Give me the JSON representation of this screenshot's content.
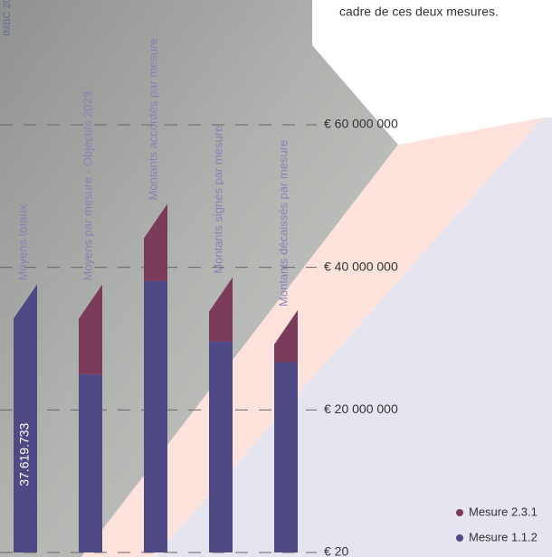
{
  "header": {
    "intro": "cadre de ces deux mesures.",
    "side": "IMBC 20"
  },
  "chart_data": {
    "type": "bar",
    "stacked": true,
    "categories": [
      "Moyens totaux",
      "Moyens par mesure - Objectifs 2023",
      "Montants accordés par mesure",
      "Montants signés par mesure",
      "Montants décaissés par mesure"
    ],
    "series": [
      {
        "name": "Mesure 2.3.1",
        "color": "#7d3b5c",
        "values": [
          null,
          12600000,
          10800000,
          9000000,
          7300000
        ]
      },
      {
        "name": "Mesure 1.1.2",
        "color": "#4f4a86",
        "values": [
          37619733,
          25000000,
          38100000,
          29600000,
          26700000
        ],
        "value_labels": [
          "37.619.733",
          null,
          null,
          null,
          null
        ]
      }
    ],
    "ylim": [
      0,
      60000000
    ],
    "yticks": [
      {
        "value": 20,
        "label": "€ 20"
      },
      {
        "value": 20000000,
        "label": "€ 20 000 000"
      },
      {
        "value": 40000000,
        "label": "€ 40 000 000"
      },
      {
        "value": 60000000,
        "label": "€ 60 000 000"
      }
    ],
    "grid": true,
    "legend": "bottom-right"
  }
}
